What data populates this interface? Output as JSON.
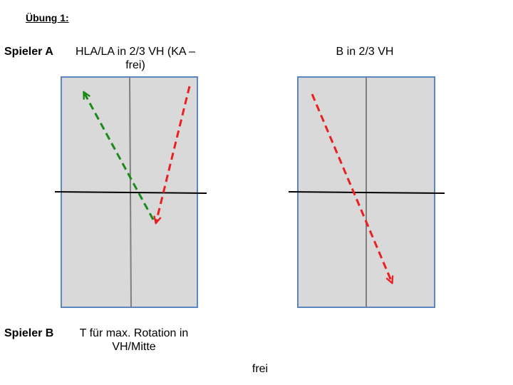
{
  "heading": "Übung 1:",
  "player_a": {
    "label": "Spieler A",
    "description": "HLA/LA in 2/3 VH (KA – frei)"
  },
  "right_court": {
    "label": "B in 2/3 VH"
  },
  "player_b": {
    "label": "Spieler B",
    "description": "T für max. Rotation in VH/Mitte"
  },
  "bottom_label": "frei",
  "colors": {
    "court_fill": "#d9d9d9",
    "court_border": "#5b86c0",
    "center_line": "#7f7f7f",
    "net": "#000000",
    "green_arrow": "#1a8a1a",
    "red_arrow": "#e82020"
  }
}
